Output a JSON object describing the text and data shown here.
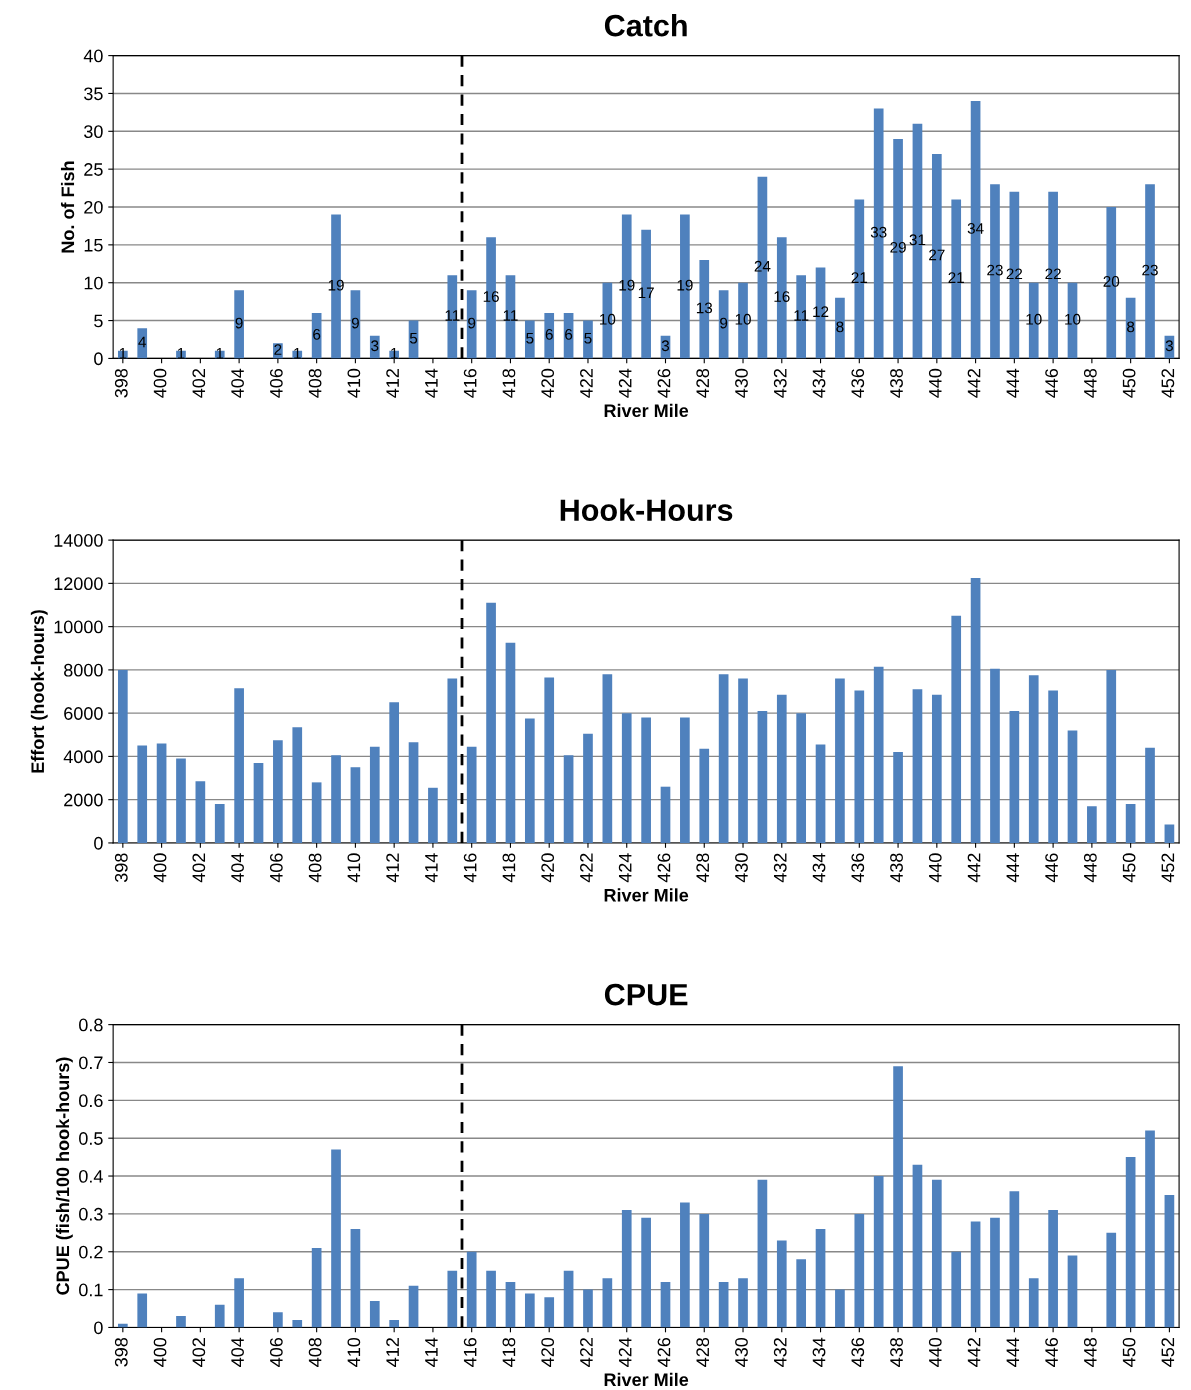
{
  "chart_data": [
    {
      "type": "bar",
      "title": "Catch",
      "xlabel": "River Mile",
      "ylabel": "No. of Fish",
      "x": [
        398,
        399,
        400,
        401,
        402,
        403,
        404,
        405,
        406,
        407,
        408,
        409,
        410,
        411,
        412,
        413,
        414,
        415,
        416,
        417,
        418,
        419,
        420,
        421,
        422,
        423,
        424,
        425,
        426,
        427,
        428,
        429,
        430,
        431,
        432,
        433,
        434,
        435,
        436,
        437,
        438,
        439,
        440,
        441,
        442,
        443,
        444,
        445,
        446,
        447,
        448,
        449,
        450,
        451,
        452
      ],
      "series": [
        {
          "color": "#4f81bd",
          "values": [
            1,
            4,
            null,
            1,
            null,
            1,
            9,
            null,
            2,
            1,
            6,
            19,
            9,
            3,
            1,
            5,
            null,
            11,
            9,
            16,
            11,
            5,
            6,
            6,
            5,
            10,
            19,
            17,
            3,
            19,
            13,
            9,
            10,
            24,
            16,
            11,
            12,
            8,
            21,
            33,
            29,
            31,
            27,
            21,
            34,
            23,
            22,
            10,
            22,
            10,
            null,
            20,
            8,
            23,
            3
          ],
          "value_labels": [
            "1",
            "4",
            null,
            "1",
            null,
            "1",
            "9",
            null,
            "2",
            "1",
            "6",
            "19",
            "9",
            "3",
            "1",
            "5",
            null,
            "11",
            "9",
            "16",
            "11",
            "5",
            "6",
            "6",
            "5",
            "10",
            "19",
            "17",
            "3",
            "19",
            "13",
            "9",
            "10",
            "24",
            "16",
            "11",
            "12",
            "8",
            "21",
            "33",
            "29",
            "31",
            "27",
            "21",
            "34",
            "23",
            "22",
            "10",
            "22",
            "10",
            null,
            "20",
            "8",
            "23",
            "3"
          ]
        }
      ],
      "xlim": [
        397.5,
        452.5
      ],
      "xticks": [
        398,
        400,
        402,
        404,
        406,
        408,
        410,
        412,
        414,
        416,
        418,
        420,
        422,
        424,
        426,
        428,
        430,
        432,
        434,
        436,
        438,
        440,
        442,
        444,
        446,
        448,
        450,
        452
      ],
      "ylim": [
        0,
        40
      ],
      "yticks": [
        0,
        5,
        10,
        15,
        20,
        25,
        30,
        35,
        40
      ],
      "grid": "y",
      "legend": false,
      "ref_lines": [
        {
          "axis": "x",
          "value": 415.5,
          "color": "#000000",
          "line_style": "dashed"
        }
      ]
    },
    {
      "type": "bar",
      "title": "Hook-Hours",
      "xlabel": "River Mile",
      "ylabel": "Effort (hook-hours)",
      "x": [
        398,
        399,
        400,
        401,
        402,
        403,
        404,
        405,
        406,
        407,
        408,
        409,
        410,
        411,
        412,
        413,
        414,
        415,
        416,
        417,
        418,
        419,
        420,
        421,
        422,
        423,
        424,
        425,
        426,
        427,
        428,
        429,
        430,
        431,
        432,
        433,
        434,
        435,
        436,
        437,
        438,
        439,
        440,
        441,
        442,
        443,
        444,
        445,
        446,
        447,
        448,
        449,
        450,
        451,
        452
      ],
      "series": [
        {
          "color": "#4f81bd",
          "values": [
            8000,
            4500,
            4600,
            3900,
            2850,
            1800,
            7150,
            3700,
            4750,
            5350,
            2800,
            4050,
            3500,
            4450,
            6500,
            4650,
            2550,
            7600,
            4450,
            11100,
            9250,
            5750,
            7650,
            4050,
            5050,
            7800,
            6000,
            5800,
            2600,
            5800,
            4350,
            7800,
            7600,
            6100,
            6850,
            6000,
            4550,
            7600,
            7050,
            8150,
            4200,
            7100,
            6850,
            10500,
            12250,
            8050,
            6100,
            7750,
            7050,
            5200,
            1700,
            8000,
            1800,
            4400,
            850
          ]
        }
      ],
      "xlim": [
        397.5,
        452.5
      ],
      "xticks": [
        398,
        400,
        402,
        404,
        406,
        408,
        410,
        412,
        414,
        416,
        418,
        420,
        422,
        424,
        426,
        428,
        430,
        432,
        434,
        436,
        438,
        440,
        442,
        444,
        446,
        448,
        450,
        452
      ],
      "ylim": [
        0,
        14000
      ],
      "yticks": [
        0,
        2000,
        4000,
        6000,
        8000,
        10000,
        12000,
        14000
      ],
      "grid": "y",
      "legend": false,
      "ref_lines": [
        {
          "axis": "x",
          "value": 415.5,
          "color": "#000000",
          "line_style": "dashed"
        }
      ]
    },
    {
      "type": "bar",
      "title": "CPUE",
      "xlabel": "River Mile",
      "ylabel": "CPUE (fish/100 hook-hours)",
      "x": [
        398,
        399,
        400,
        401,
        402,
        403,
        404,
        405,
        406,
        407,
        408,
        409,
        410,
        411,
        412,
        413,
        414,
        415,
        416,
        417,
        418,
        419,
        420,
        421,
        422,
        423,
        424,
        425,
        426,
        427,
        428,
        429,
        430,
        431,
        432,
        433,
        434,
        435,
        436,
        437,
        438,
        439,
        440,
        441,
        442,
        443,
        444,
        445,
        446,
        447,
        448,
        449,
        450,
        451,
        452
      ],
      "series": [
        {
          "color": "#4f81bd",
          "values": [
            0.01,
            0.09,
            null,
            0.03,
            null,
            0.06,
            0.13,
            null,
            0.04,
            0.02,
            0.21,
            0.47,
            0.26,
            0.07,
            0.02,
            0.11,
            null,
            0.15,
            0.2,
            0.15,
            0.12,
            0.09,
            0.08,
            0.15,
            0.1,
            0.13,
            0.31,
            0.29,
            0.12,
            0.33,
            0.3,
            0.12,
            0.13,
            0.39,
            0.23,
            0.18,
            0.26,
            0.1,
            0.3,
            0.4,
            0.69,
            0.43,
            0.39,
            0.2,
            0.28,
            0.29,
            0.36,
            0.13,
            0.31,
            0.19,
            null,
            0.25,
            0.45,
            0.52,
            0.35
          ]
        }
      ],
      "xlim": [
        397.5,
        452.5
      ],
      "xticks": [
        398,
        400,
        402,
        404,
        406,
        408,
        410,
        412,
        414,
        416,
        418,
        420,
        422,
        424,
        426,
        428,
        430,
        432,
        434,
        436,
        438,
        440,
        442,
        444,
        446,
        448,
        450,
        452
      ],
      "ylim": [
        0,
        0.8
      ],
      "yticks": [
        0,
        0.1,
        0.2,
        0.3,
        0.4,
        0.5,
        0.6,
        0.7,
        0.8
      ],
      "grid": "y",
      "legend": false,
      "ref_lines": [
        {
          "axis": "x",
          "value": 415.5,
          "color": "#000000",
          "line_style": "dashed"
        }
      ]
    }
  ]
}
